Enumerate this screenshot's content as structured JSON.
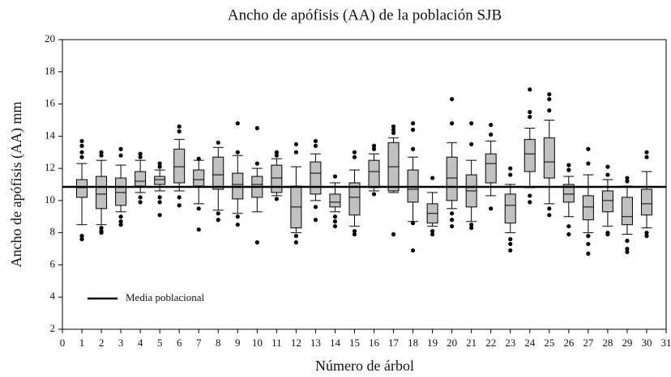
{
  "chart_data": {
    "type": "box",
    "title": "Ancho de apófisis (AA) de la población SJB",
    "x_label": "Número de árbol",
    "y_label": "Ancho de apófisis (AA) mm",
    "xlim": [
      0,
      31
    ],
    "ylim": [
      2,
      20
    ],
    "xticks": [
      0,
      1,
      2,
      3,
      4,
      5,
      6,
      7,
      8,
      9,
      10,
      11,
      12,
      13,
      14,
      15,
      16,
      17,
      18,
      19,
      20,
      21,
      22,
      23,
      24,
      25,
      26,
      27,
      28,
      29,
      30,
      31
    ],
    "yticks": [
      2,
      4,
      6,
      8,
      10,
      12,
      14,
      16,
      18,
      20
    ],
    "color": "#c0c0c0",
    "reference_line": {
      "name": "Media poblacional",
      "value": 10.85
    },
    "x": [
      1,
      2,
      3,
      4,
      5,
      6,
      7,
      8,
      9,
      10,
      11,
      12,
      13,
      14,
      15,
      16,
      17,
      18,
      19,
      20,
      21,
      22,
      23,
      24,
      25,
      26,
      27,
      28,
      29,
      30
    ],
    "boxes": [
      {
        "min": 8.5,
        "q1": 10.2,
        "median": 10.8,
        "q3": 11.3,
        "max": 12.3,
        "outliers": [
          13.7,
          13.4,
          13.0,
          12.7,
          7.8,
          7.6
        ]
      },
      {
        "min": 8.5,
        "q1": 9.5,
        "median": 10.4,
        "q3": 11.5,
        "max": 12.5,
        "outliers": [
          13.0,
          12.8,
          8.3,
          8.1,
          8.0
        ]
      },
      {
        "min": 9.3,
        "q1": 9.7,
        "median": 10.5,
        "q3": 11.4,
        "max": 12.2,
        "outliers": [
          13.2,
          12.8,
          9.0,
          8.7,
          8.5
        ]
      },
      {
        "min": 10.5,
        "q1": 10.9,
        "median": 11.2,
        "q3": 11.8,
        "max": 12.5,
        "outliers": [
          12.9,
          12.7,
          10.2,
          9.9
        ]
      },
      {
        "min": 10.6,
        "q1": 11.0,
        "median": 11.3,
        "q3": 11.5,
        "max": 11.9,
        "outliers": [
          12.3,
          12.1,
          10.2,
          9.9,
          9.1
        ]
      },
      {
        "min": 10.6,
        "q1": 11.1,
        "median": 12.1,
        "q3": 13.2,
        "max": 13.8,
        "outliers": [
          14.6,
          14.3,
          10.2,
          9.7
        ]
      },
      {
        "min": 9.8,
        "q1": 10.9,
        "median": 11.3,
        "q3": 11.9,
        "max": 12.5,
        "outliers": [
          12.6,
          9.5,
          8.2
        ]
      },
      {
        "min": 9.4,
        "q1": 10.7,
        "median": 11.6,
        "q3": 12.7,
        "max": 13.3,
        "outliers": [
          13.6,
          9.2,
          8.8
        ]
      },
      {
        "min": 9.2,
        "q1": 10.1,
        "median": 11.0,
        "q3": 11.7,
        "max": 12.8,
        "outliers": [
          14.8,
          13.0,
          9.0,
          8.5
        ]
      },
      {
        "min": 9.3,
        "q1": 10.2,
        "median": 11.0,
        "q3": 11.5,
        "max": 12.0,
        "outliers": [
          14.5,
          12.3,
          7.4
        ]
      },
      {
        "min": 10.3,
        "q1": 10.5,
        "median": 11.4,
        "q3": 12.2,
        "max": 12.6,
        "outliers": [
          13.0,
          12.8,
          10.1
        ]
      },
      {
        "min": 8.0,
        "q1": 8.3,
        "median": 9.6,
        "q3": 10.9,
        "max": 12.1,
        "outliers": [
          13.5,
          13.0,
          7.8,
          7.4
        ]
      },
      {
        "min": 10.0,
        "q1": 10.4,
        "median": 11.7,
        "q3": 12.4,
        "max": 12.9,
        "outliers": [
          13.7,
          13.4,
          9.6,
          8.8
        ]
      },
      {
        "min": 9.3,
        "q1": 9.6,
        "median": 9.9,
        "q3": 10.4,
        "max": 11.1,
        "outliers": [
          11.5,
          9.0,
          8.7,
          8.4
        ]
      },
      {
        "min": 8.4,
        "q1": 9.1,
        "median": 10.2,
        "q3": 11.1,
        "max": 11.9,
        "outliers": [
          13.0,
          12.7,
          8.1,
          7.9
        ]
      },
      {
        "min": 10.6,
        "q1": 10.8,
        "median": 11.8,
        "q3": 12.5,
        "max": 12.9,
        "outliers": [
          13.4,
          13.2,
          10.4
        ]
      },
      {
        "min": 10.5,
        "q1": 10.6,
        "median": 12.1,
        "q3": 13.6,
        "max": 13.9,
        "outliers": [
          14.6,
          14.4,
          14.2,
          7.9
        ]
      },
      {
        "min": 8.7,
        "q1": 9.9,
        "median": 10.7,
        "q3": 11.9,
        "max": 12.7,
        "outliers": [
          14.8,
          14.4,
          13.2,
          8.6,
          6.9
        ]
      },
      {
        "min": 8.4,
        "q1": 8.6,
        "median": 9.2,
        "q3": 9.8,
        "max": 10.5,
        "outliers": [
          11.4,
          8.1,
          7.9
        ]
      },
      {
        "min": 9.5,
        "q1": 10.0,
        "median": 11.4,
        "q3": 12.7,
        "max": 13.6,
        "outliers": [
          16.3,
          14.8,
          9.2,
          8.8,
          8.4
        ]
      },
      {
        "min": 8.7,
        "q1": 9.6,
        "median": 10.6,
        "q3": 11.6,
        "max": 12.5,
        "outliers": [
          14.8,
          13.5,
          8.5,
          8.3
        ]
      },
      {
        "min": 10.3,
        "q1": 11.1,
        "median": 12.3,
        "q3": 12.9,
        "max": 13.7,
        "outliers": [
          14.7,
          14.1,
          9.5
        ]
      },
      {
        "min": 8.0,
        "q1": 8.6,
        "median": 9.7,
        "q3": 10.4,
        "max": 11.0,
        "outliers": [
          12.0,
          11.6,
          7.6,
          7.3,
          6.9
        ]
      },
      {
        "min": 10.8,
        "q1": 11.8,
        "median": 12.9,
        "q3": 13.8,
        "max": 14.5,
        "outliers": [
          16.9,
          15.5,
          15.2,
          10.3,
          9.9
        ]
      },
      {
        "min": 9.8,
        "q1": 11.4,
        "median": 12.4,
        "q3": 13.9,
        "max": 15.0,
        "outliers": [
          16.6,
          16.3,
          15.6,
          9.5,
          9.1
        ]
      },
      {
        "min": 9.0,
        "q1": 9.9,
        "median": 10.4,
        "q3": 11.0,
        "max": 11.5,
        "outliers": [
          12.2,
          11.9,
          8.4,
          7.9
        ]
      },
      {
        "min": 8.0,
        "q1": 8.8,
        "median": 9.6,
        "q3": 10.3,
        "max": 11.6,
        "outliers": [
          13.2,
          12.3,
          7.8,
          7.3,
          6.7
        ]
      },
      {
        "min": 8.4,
        "q1": 9.3,
        "median": 10.0,
        "q3": 10.6,
        "max": 11.3,
        "outliers": [
          12.1,
          11.6,
          8.0,
          7.9
        ]
      },
      {
        "min": 7.9,
        "q1": 8.5,
        "median": 9.0,
        "q3": 10.2,
        "max": 10.9,
        "outliers": [
          11.4,
          11.2,
          7.5,
          7.0,
          6.8
        ]
      },
      {
        "min": 8.3,
        "q1": 9.1,
        "median": 9.8,
        "q3": 10.7,
        "max": 11.8,
        "outliers": [
          13.0,
          12.7,
          8.0,
          7.8
        ]
      }
    ]
  }
}
